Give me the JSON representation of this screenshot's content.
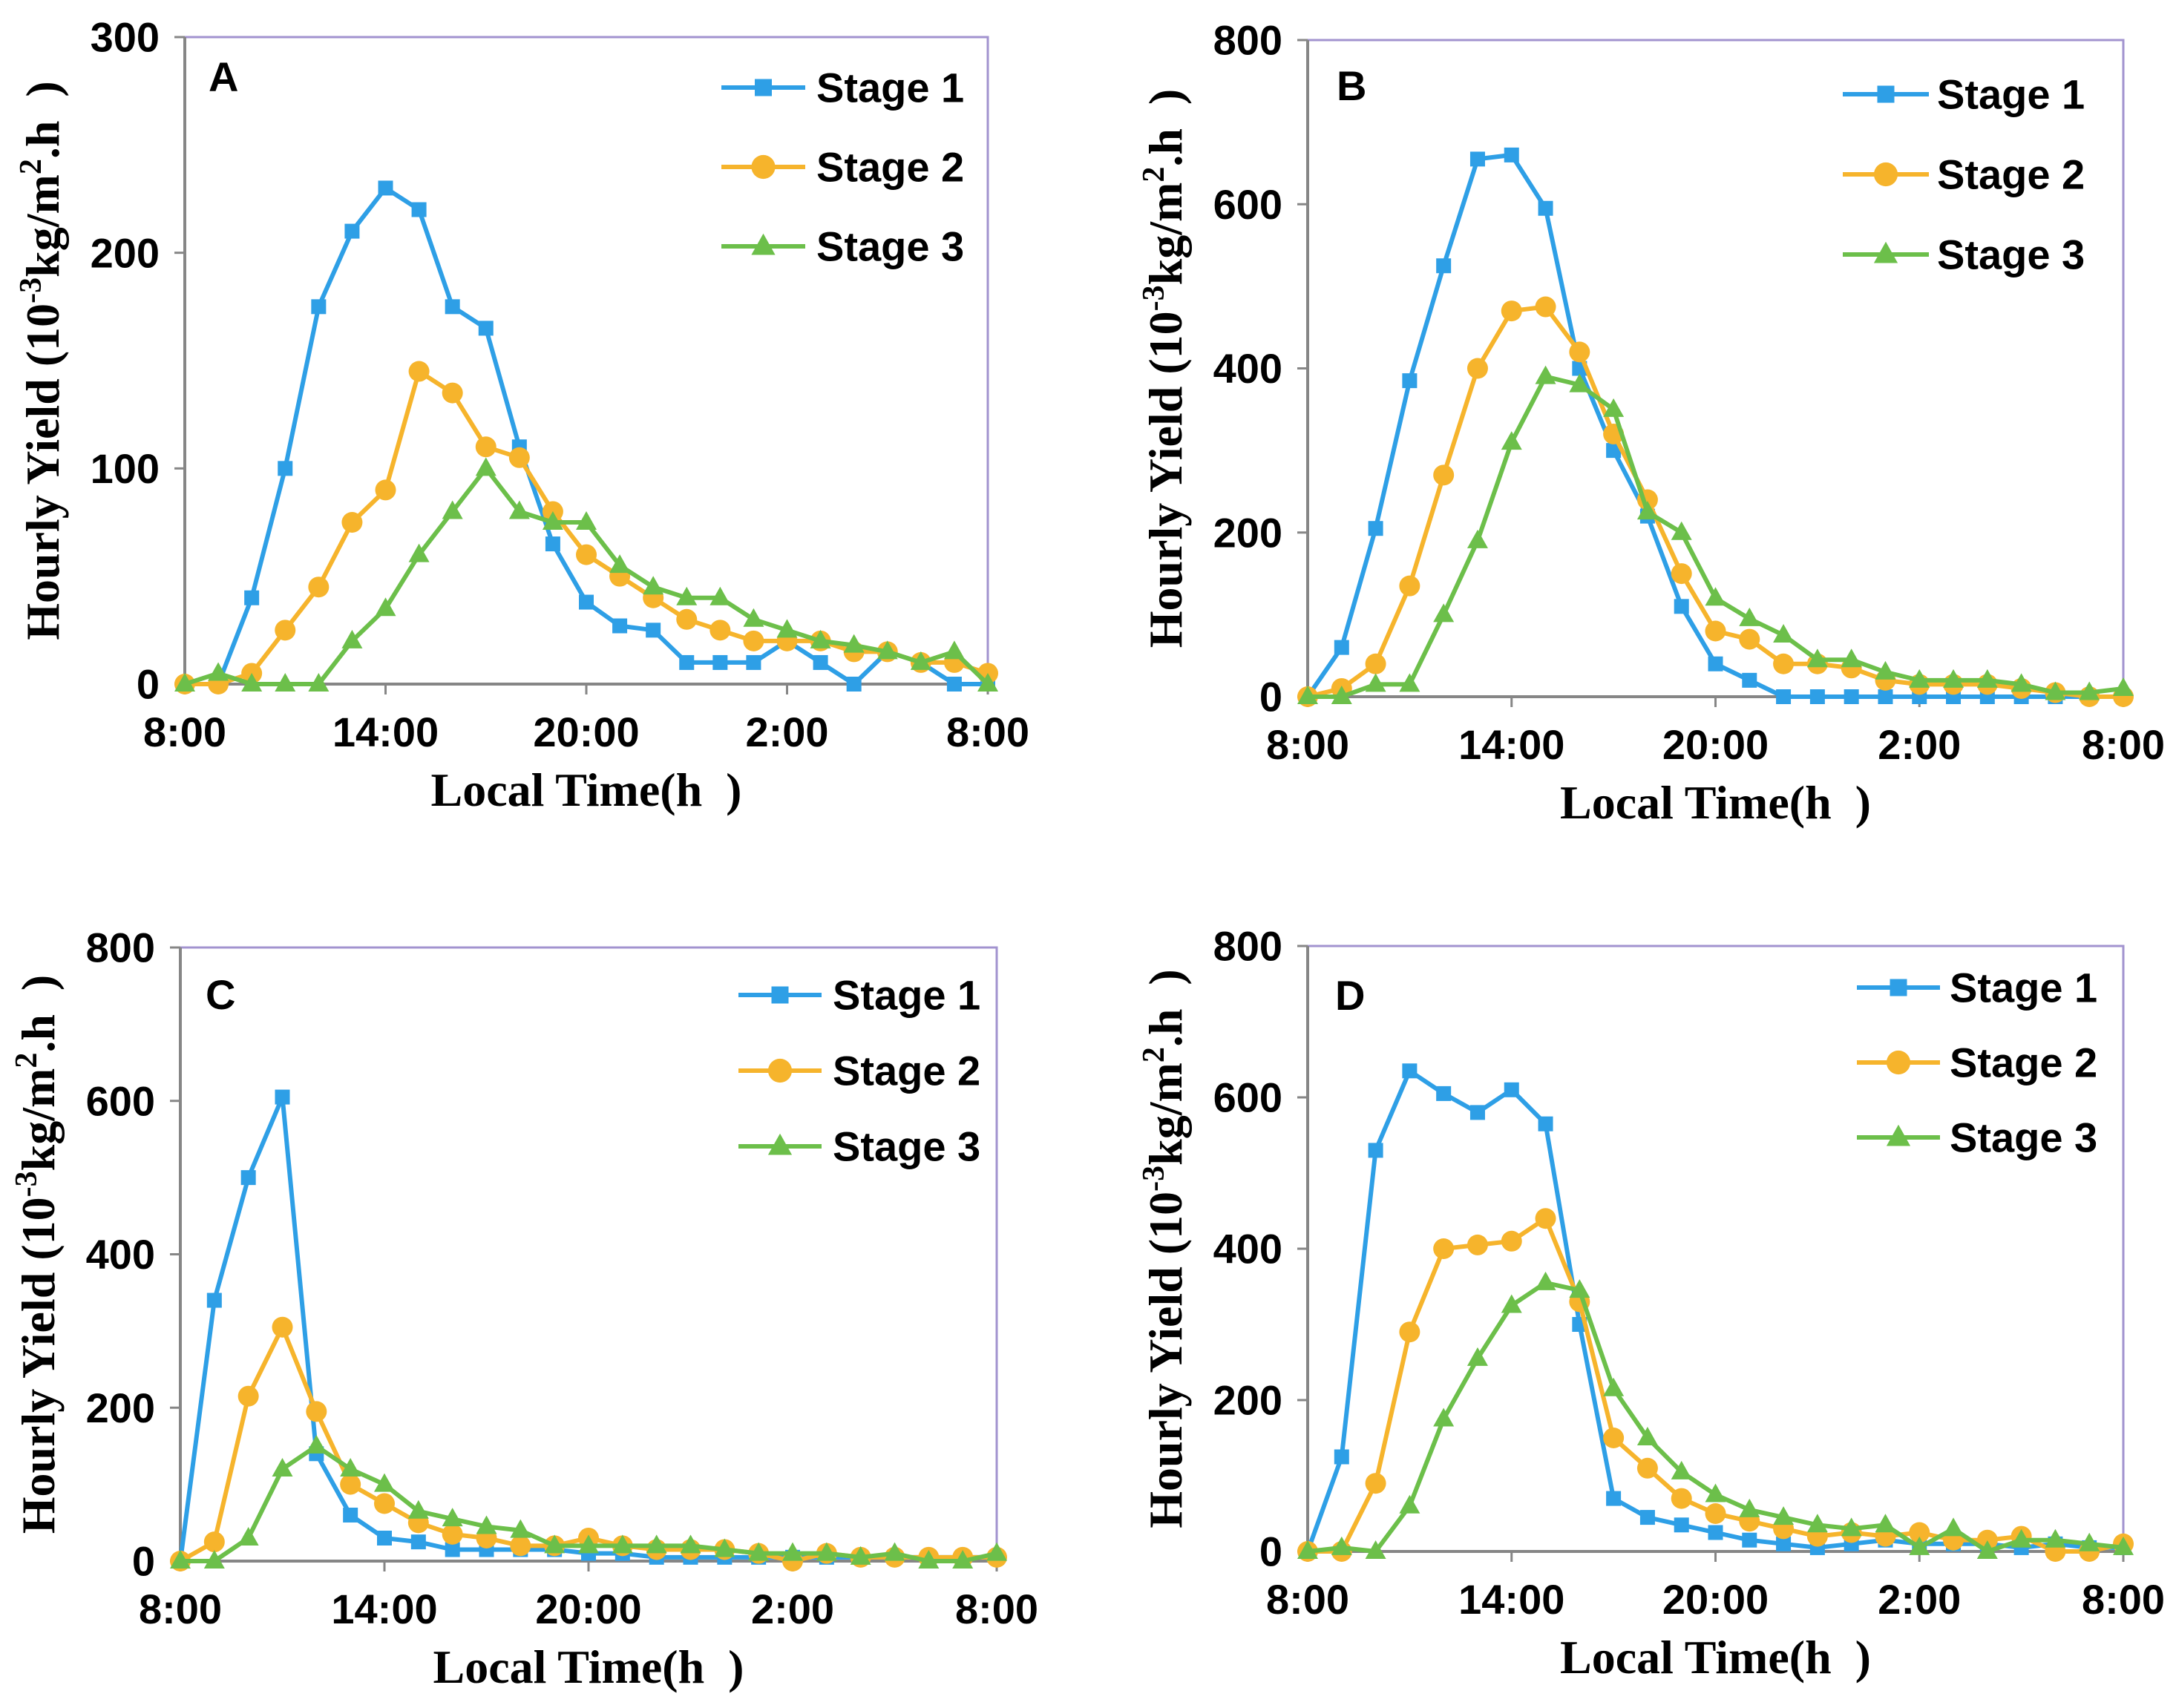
{
  "style": {
    "frame_color": "#a293cf",
    "axis_color": "#868686"
  },
  "chart_data": [
    {
      "type": "line",
      "panel_label": "A",
      "xlabel": "Local Time(h  )",
      "ylabel": {
        "text": "Hourly Yield (10",
        "sup1": "-3",
        "unit": "kg/m",
        "sup2": "2",
        "end": ".h  )"
      },
      "x": [
        0,
        1,
        2,
        3,
        4,
        5,
        6,
        7,
        8,
        9,
        10,
        11,
        12,
        13,
        14,
        15,
        16,
        17,
        18,
        19,
        20,
        21,
        22,
        23,
        24
      ],
      "xlim": [
        0,
        24
      ],
      "xticks": [
        {
          "at": 0,
          "label": "8:00"
        },
        {
          "at": 6,
          "label": "14:00"
        },
        {
          "at": 12,
          "label": "20:00"
        },
        {
          "at": 18,
          "label": "2:00"
        },
        {
          "at": 24,
          "label": "8:00"
        }
      ],
      "ylim": [
        0,
        300
      ],
      "yticks": [
        0,
        100,
        200,
        300
      ],
      "grid": false,
      "legend": "top-right",
      "series": [
        {
          "name": "Stage 1",
          "marker": "square",
          "color": "#2e9fe6",
          "values": [
            0,
            0,
            40,
            100,
            175,
            210,
            230,
            220,
            175,
            165,
            110,
            65,
            38,
            27,
            25,
            10,
            10,
            10,
            20,
            10,
            0,
            15,
            10,
            0,
            0
          ]
        },
        {
          "name": "Stage 2",
          "marker": "circle",
          "color": "#f6b42c",
          "values": [
            0,
            0,
            5,
            25,
            45,
            75,
            90,
            145,
            135,
            110,
            105,
            80,
            60,
            50,
            40,
            30,
            25,
            20,
            20,
            20,
            15,
            15,
            10,
            10,
            5
          ]
        },
        {
          "name": "Stage 3",
          "marker": "triangle",
          "color": "#6cbf4a",
          "values": [
            0,
            5,
            0,
            0,
            0,
            20,
            35,
            60,
            80,
            100,
            80,
            75,
            75,
            55,
            45,
            40,
            40,
            30,
            25,
            20,
            18,
            15,
            10,
            15,
            0
          ]
        }
      ]
    },
    {
      "type": "line",
      "panel_label": "B",
      "xlabel": "Local Time(h  )",
      "ylabel": {
        "text": "Hourly Yield (10",
        "sup1": "-3",
        "unit": "kg/m",
        "sup2": "2",
        "end": ".h  )"
      },
      "x": [
        0,
        1,
        2,
        3,
        4,
        5,
        6,
        7,
        8,
        9,
        10,
        11,
        12,
        13,
        14,
        15,
        16,
        17,
        18,
        19,
        20,
        21,
        22,
        23,
        24
      ],
      "xlim": [
        0,
        24
      ],
      "xticks": [
        {
          "at": 0,
          "label": "8:00"
        },
        {
          "at": 6,
          "label": "14:00"
        },
        {
          "at": 12,
          "label": "20:00"
        },
        {
          "at": 18,
          "label": "2:00"
        },
        {
          "at": 24,
          "label": "8:00"
        }
      ],
      "ylim": [
        0,
        800
      ],
      "yticks": [
        0,
        200,
        400,
        600,
        800
      ],
      "grid": false,
      "legend": "top-right",
      "series": [
        {
          "name": "Stage 1",
          "marker": "square",
          "color": "#2e9fe6",
          "values": [
            0,
            60,
            205,
            385,
            525,
            655,
            660,
            595,
            400,
            300,
            220,
            110,
            40,
            20,
            0,
            0,
            0,
            0,
            0,
            0,
            0,
            0,
            0,
            0,
            0
          ]
        },
        {
          "name": "Stage 2",
          "marker": "circle",
          "color": "#f6b42c",
          "values": [
            0,
            10,
            40,
            135,
            270,
            400,
            470,
            475,
            420,
            320,
            240,
            150,
            80,
            70,
            40,
            40,
            35,
            20,
            15,
            15,
            15,
            10,
            5,
            0,
            0
          ]
        },
        {
          "name": "Stage 3",
          "marker": "triangle",
          "color": "#6cbf4a",
          "values": [
            0,
            0,
            15,
            15,
            100,
            190,
            310,
            390,
            380,
            350,
            225,
            200,
            120,
            95,
            75,
            45,
            45,
            30,
            20,
            20,
            20,
            15,
            5,
            5,
            10
          ]
        }
      ]
    },
    {
      "type": "line",
      "panel_label": "C",
      "xlabel": "Local Time(h  )",
      "ylabel": {
        "text": "Hourly Yield (10",
        "sup1": "-3",
        "unit": "kg/m",
        "sup2": "2",
        "end": ".h  )"
      },
      "x": [
        0,
        1,
        2,
        3,
        4,
        5,
        6,
        7,
        8,
        9,
        10,
        11,
        12,
        13,
        14,
        15,
        16,
        17,
        18,
        19,
        20,
        21,
        22,
        23,
        24
      ],
      "xlim": [
        0,
        24
      ],
      "xticks": [
        {
          "at": 0,
          "label": "8:00"
        },
        {
          "at": 6,
          "label": "14:00"
        },
        {
          "at": 12,
          "label": "20:00"
        },
        {
          "at": 18,
          "label": "2:00"
        },
        {
          "at": 24,
          "label": "8:00"
        }
      ],
      "ylim": [
        0,
        800
      ],
      "yticks": [
        0,
        200,
        400,
        600,
        800
      ],
      "grid": false,
      "legend": "top-right",
      "series": [
        {
          "name": "Stage 1",
          "marker": "square",
          "color": "#2e9fe6",
          "values": [
            0,
            340,
            500,
            605,
            140,
            60,
            30,
            25,
            15,
            15,
            15,
            15,
            10,
            10,
            5,
            5,
            5,
            5,
            5,
            5,
            5,
            5,
            5,
            5,
            5
          ]
        },
        {
          "name": "Stage 2",
          "marker": "circle",
          "color": "#f6b42c",
          "values": [
            0,
            25,
            215,
            305,
            195,
            100,
            75,
            50,
            35,
            30,
            20,
            20,
            30,
            20,
            15,
            15,
            15,
            10,
            0,
            10,
            5,
            5,
            5,
            5,
            5
          ]
        },
        {
          "name": "Stage 3",
          "marker": "triangle",
          "color": "#6cbf4a",
          "values": [
            0,
            0,
            30,
            120,
            150,
            120,
            100,
            65,
            55,
            45,
            40,
            20,
            20,
            20,
            20,
            20,
            15,
            10,
            10,
            10,
            5,
            10,
            0,
            0,
            10
          ]
        }
      ]
    },
    {
      "type": "line",
      "panel_label": "D",
      "xlabel": "Local Time(h  )",
      "ylabel": {
        "text": "Hourly Yield (10",
        "sup1": "-3",
        "unit": "kg/m",
        "sup2": "2",
        "end": ".h  )"
      },
      "x": [
        0,
        1,
        2,
        3,
        4,
        5,
        6,
        7,
        8,
        9,
        10,
        11,
        12,
        13,
        14,
        15,
        16,
        17,
        18,
        19,
        20,
        21,
        22,
        23,
        24
      ],
      "xlim": [
        0,
        24
      ],
      "xticks": [
        {
          "at": 0,
          "label": "8:00"
        },
        {
          "at": 6,
          "label": "14:00"
        },
        {
          "at": 12,
          "label": "20:00"
        },
        {
          "at": 18,
          "label": "2:00"
        },
        {
          "at": 24,
          "label": "8:00"
        }
      ],
      "ylim": [
        0,
        800
      ],
      "yticks": [
        0,
        200,
        400,
        600,
        800
      ],
      "grid": false,
      "legend": "top-right",
      "series": [
        {
          "name": "Stage 1",
          "marker": "square",
          "color": "#2e9fe6",
          "values": [
            0,
            125,
            530,
            635,
            605,
            580,
            610,
            565,
            300,
            70,
            45,
            35,
            25,
            15,
            10,
            5,
            10,
            15,
            10,
            10,
            10,
            5,
            10,
            5,
            5
          ]
        },
        {
          "name": "Stage 2",
          "marker": "circle",
          "color": "#f6b42c",
          "values": [
            0,
            0,
            90,
            290,
            400,
            405,
            410,
            440,
            330,
            150,
            110,
            70,
            50,
            40,
            30,
            20,
            25,
            20,
            25,
            15,
            15,
            20,
            0,
            0,
            10
          ]
        },
        {
          "name": "Stage 3",
          "marker": "triangle",
          "color": "#6cbf4a",
          "values": [
            0,
            5,
            0,
            60,
            175,
            255,
            325,
            355,
            345,
            215,
            150,
            105,
            75,
            55,
            45,
            35,
            30,
            35,
            5,
            30,
            0,
            15,
            15,
            10,
            5
          ]
        }
      ]
    }
  ]
}
